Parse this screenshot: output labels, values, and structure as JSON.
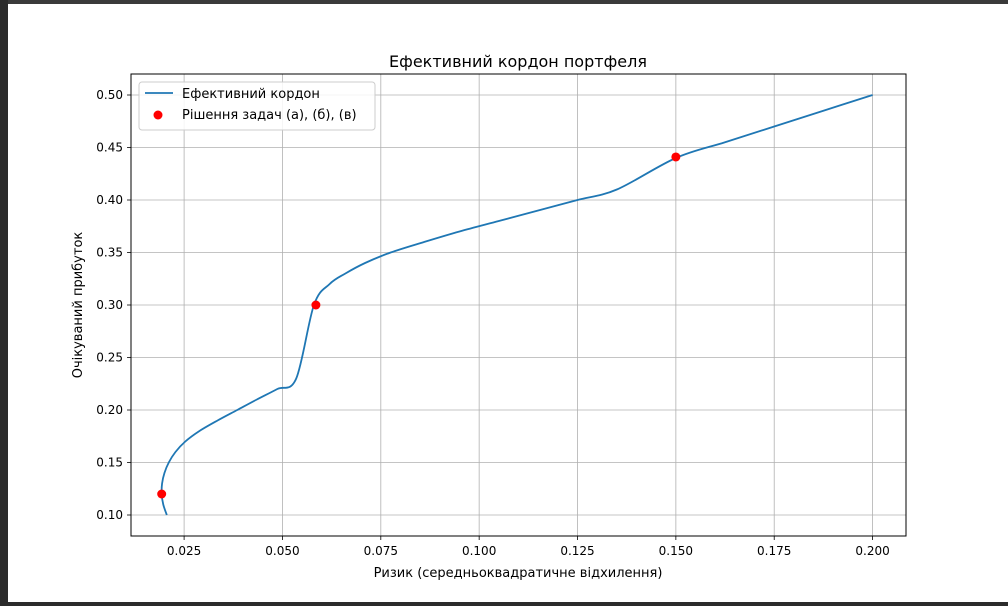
{
  "chart_data": {
    "type": "line",
    "title": "Ефективний кордон портфеля",
    "xlabel": "Ризик (середньоквадратичне відхилення)",
    "ylabel": "Очікуваний прибуток",
    "xlim": [
      0.0115,
      0.2085
    ],
    "ylim": [
      0.08,
      0.52
    ],
    "grid": true,
    "legend_position": "top-left",
    "x_ticks": [
      0.025,
      0.05,
      0.075,
      0.1,
      0.125,
      0.15,
      0.175,
      0.2
    ],
    "x_tick_labels": [
      "0.025",
      "0.050",
      "0.075",
      "0.100",
      "0.125",
      "0.150",
      "0.175",
      "0.200"
    ],
    "y_ticks": [
      0.1,
      0.15,
      0.2,
      0.25,
      0.3,
      0.35,
      0.4,
      0.45,
      0.5
    ],
    "y_tick_labels": [
      "0.10",
      "0.15",
      "0.20",
      "0.25",
      "0.30",
      "0.35",
      "0.40",
      "0.45",
      "0.50"
    ],
    "series": [
      {
        "name": "Ефективний кордон",
        "kind": "line",
        "color": "#1f77b4",
        "x": [
          0.0206,
          0.0197,
          0.0193,
          0.0194,
          0.02,
          0.0211,
          0.0228,
          0.0253,
          0.0289,
          0.0335,
          0.0385,
          0.0435,
          0.0487,
          0.0535,
          0.058,
          0.062,
          0.066,
          0.071,
          0.0775,
          0.086,
          0.095,
          0.105,
          0.115,
          0.125,
          0.135,
          0.15,
          0.1625,
          0.175,
          0.1875,
          0.2
        ],
        "y": [
          0.1,
          0.11,
          0.12,
          0.13,
          0.14,
          0.15,
          0.16,
          0.17,
          0.18,
          0.19,
          0.2,
          0.21,
          0.22,
          0.23,
          0.3,
          0.32,
          0.33,
          0.34,
          0.35,
          0.36,
          0.37,
          0.38,
          0.39,
          0.4,
          0.41,
          0.44,
          0.455,
          0.47,
          0.485,
          0.5
        ]
      },
      {
        "name": "Рішення задач (а), (б), (в)",
        "kind": "scatter",
        "color": "#ff0000",
        "x": [
          0.0193,
          0.0585,
          0.15
        ],
        "y": [
          0.12,
          0.3,
          0.441
        ]
      }
    ]
  }
}
